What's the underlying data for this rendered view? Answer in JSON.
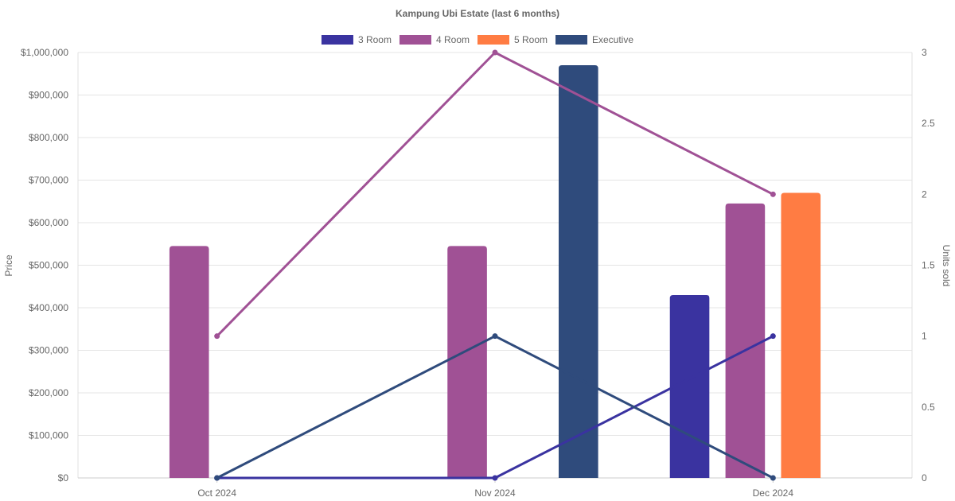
{
  "chart_data": {
    "type": "bar",
    "title": "Kampung Ubi Estate (last 6 months)",
    "categories": [
      "Oct 2024",
      "Nov 2024",
      "Dec 2024"
    ],
    "y_left": {
      "label": "Price",
      "ticks": [
        "$0",
        "$100,000",
        "$200,000",
        "$300,000",
        "$400,000",
        "$500,000",
        "$600,000",
        "$700,000",
        "$800,000",
        "$900,000",
        "$1,000,000"
      ],
      "range": [
        0,
        1000000
      ]
    },
    "y_right": {
      "label": "Units sold",
      "ticks": [
        "0",
        "0.5",
        "1",
        "1.5",
        "2",
        "2.5",
        "3"
      ],
      "range": [
        0,
        3
      ]
    },
    "legend_position": "top",
    "grid": true,
    "series": [
      {
        "name": "3 Room",
        "color": "#3a33a0",
        "prices": [
          null,
          null,
          430000
        ],
        "units": [
          0,
          0,
          1
        ]
      },
      {
        "name": "4 Room",
        "color": "#a05195",
        "prices": [
          545000,
          545000,
          645000
        ],
        "units": [
          1,
          3,
          2
        ]
      },
      {
        "name": "5 Room",
        "color": "#ff7c43",
        "prices": [
          null,
          null,
          670000
        ],
        "units": [
          null,
          null,
          null
        ]
      },
      {
        "name": "Executive",
        "color": "#2f4b7c",
        "prices": [
          null,
          970000,
          null
        ],
        "units": [
          0,
          1,
          0
        ]
      }
    ]
  }
}
